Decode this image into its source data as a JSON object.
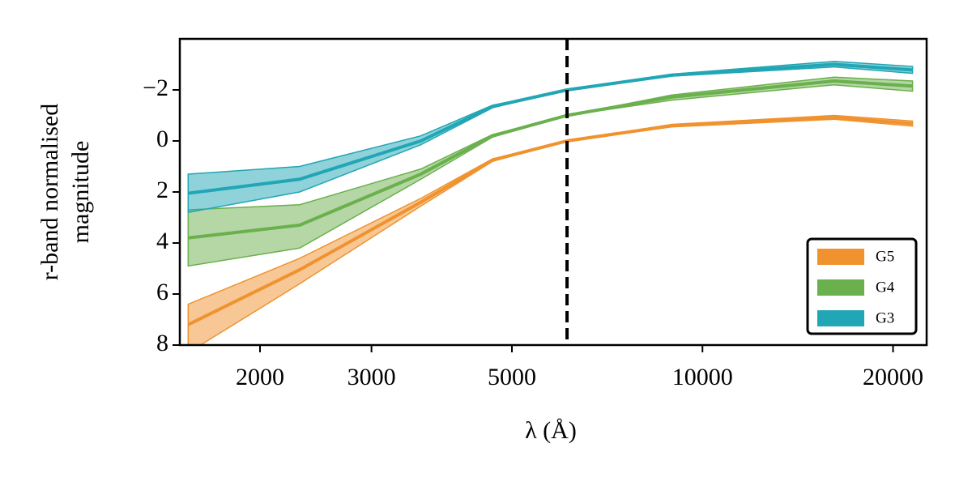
{
  "chart_data": {
    "type": "line",
    "xlabel": "λ (Å)",
    "ylabel": [
      "r-band normalised",
      "magnitude"
    ],
    "x": [
      1540,
      2310,
      3590,
      4660,
      6110,
      8950,
      16150,
      21470
    ],
    "xlim": [
      1494,
      22600
    ],
    "xscale": "log",
    "xticks": [
      2000,
      3000,
      5000,
      10000,
      20000
    ],
    "ylim": [
      -4,
      8
    ],
    "y_inverted": true,
    "yticks": [
      {
        "value": -2,
        "label": "−2"
      },
      0,
      2,
      4,
      6,
      8
    ],
    "vline": 6110,
    "legend": "lower right",
    "series": [
      {
        "name": "G5",
        "color": "#f0922e",
        "values": [
          7.2,
          5.05,
          2.4,
          0.75,
          0,
          -0.6,
          -0.92,
          -0.68
        ],
        "lower": [
          6.4,
          4.6,
          2.25,
          0.7,
          0,
          -0.65,
          -1.0,
          -0.78
        ],
        "upper": [
          8.3,
          5.6,
          2.55,
          0.8,
          0,
          -0.55,
          -0.85,
          -0.58
        ]
      },
      {
        "name": "G4",
        "color": "#6ab04c",
        "values": [
          3.8,
          3.3,
          1.3,
          -0.2,
          -1.0,
          -1.72,
          -2.35,
          -2.15
        ],
        "lower": [
          2.7,
          2.5,
          1.1,
          -0.25,
          -1.0,
          -1.8,
          -2.5,
          -2.35
        ],
        "upper": [
          4.9,
          4.2,
          1.5,
          -0.15,
          -1.0,
          -1.6,
          -2.2,
          -1.95
        ]
      },
      {
        "name": "G3",
        "color": "#21a6b5",
        "values": [
          2.05,
          1.5,
          0,
          -1.35,
          -2.0,
          -2.58,
          -3.0,
          -2.78
        ],
        "lower": [
          1.3,
          1.0,
          -0.2,
          -1.4,
          -2.0,
          -2.62,
          -3.12,
          -2.92
        ],
        "upper": [
          2.8,
          2.0,
          0.15,
          -1.3,
          -2.0,
          -2.54,
          -2.9,
          -2.65
        ]
      }
    ]
  }
}
